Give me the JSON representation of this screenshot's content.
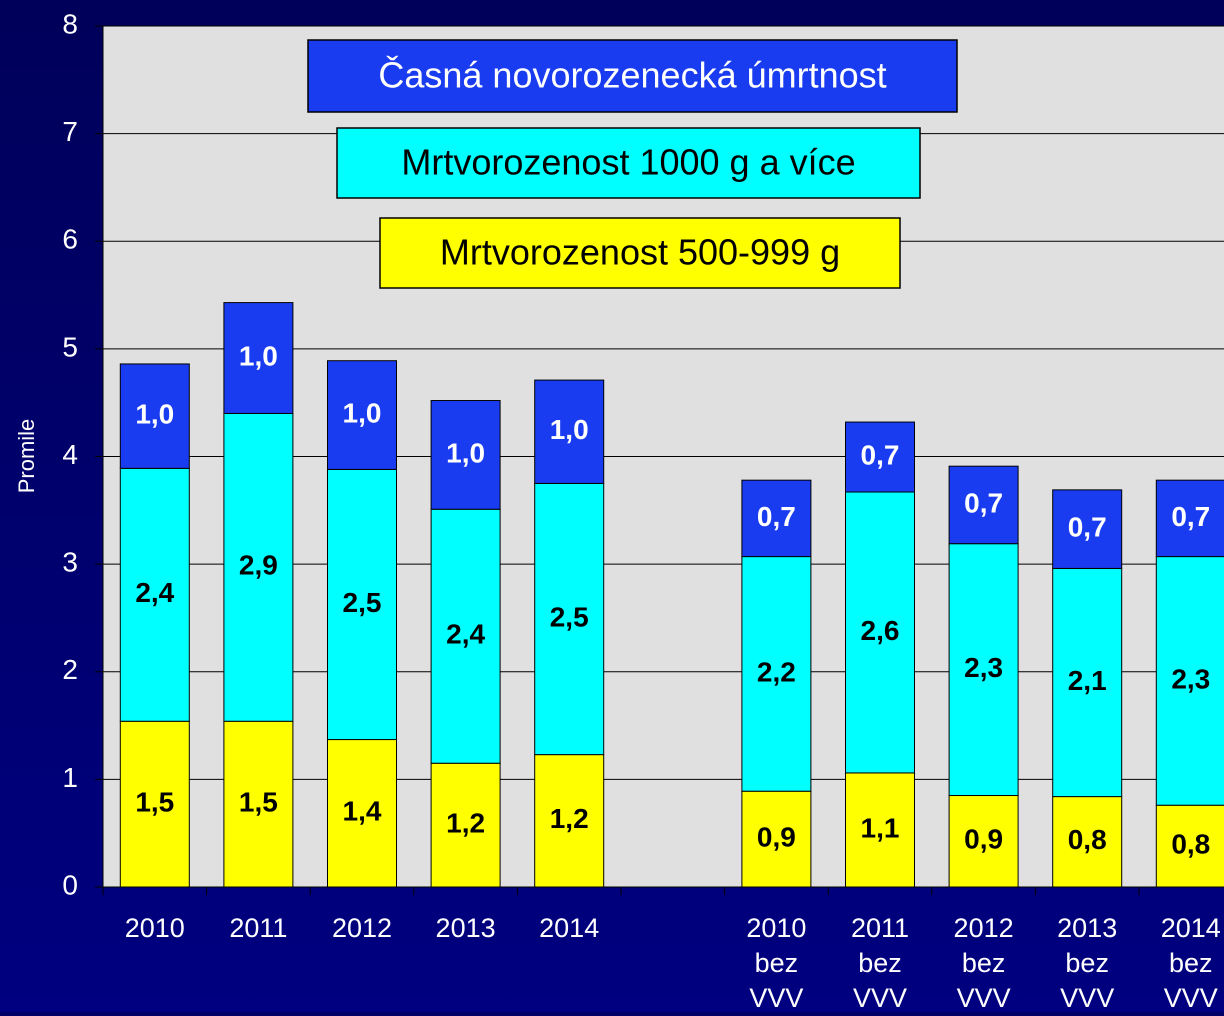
{
  "chart_data": {
    "type": "stacked_bar",
    "ylabel": "Promile",
    "categories": [
      "2010",
      "2011",
      "2012",
      "2013",
      "2014",
      null,
      "2010 bez VVV",
      "2011 bez VVV",
      "2012 bez VVV",
      "2013 bez VVV",
      "2014 bez VVV"
    ],
    "series": [
      {
        "name": "Mrtvorozenost 500-999 g",
        "color": "#ffff00",
        "label_color": "#000000",
        "values": [
          1.54,
          1.54,
          1.37,
          1.15,
          1.23,
          null,
          0.89,
          1.06,
          0.85,
          0.84,
          0.76
        ],
        "value_labels": [
          "1,5",
          "1,5",
          "1,4",
          "1,2",
          "1,2",
          null,
          "0,9",
          "1,1",
          "0,9",
          "0,8",
          "0,8"
        ]
      },
      {
        "name": "Mrtvorozenost 1000 g a více",
        "color": "#00ffff",
        "label_color": "#000000",
        "values": [
          2.35,
          2.86,
          2.51,
          2.36,
          2.52,
          null,
          2.18,
          2.61,
          2.34,
          2.12,
          2.31
        ],
        "value_labels": [
          "2,4",
          "2,9",
          "2,5",
          "2,4",
          "2,5",
          null,
          "2,2",
          "2,6",
          "2,3",
          "2,1",
          "2,3"
        ]
      },
      {
        "name": "Časná novorozenecká úmrtnost",
        "color": "#1a3cf0",
        "label_color": "#ffffff",
        "values": [
          0.97,
          1.03,
          1.01,
          1.01,
          0.96,
          null,
          0.71,
          0.65,
          0.72,
          0.73,
          0.71
        ],
        "value_labels": [
          "1,0",
          "1,0",
          "1,0",
          "1,0",
          "1,0",
          null,
          "0,7",
          "0,7",
          "0,7",
          "0,7",
          "0,7"
        ]
      }
    ],
    "ylim": [
      0,
      8
    ],
    "yticks": [
      0,
      1,
      2,
      3,
      4,
      5,
      6,
      7,
      8
    ],
    "grid": true
  }
}
